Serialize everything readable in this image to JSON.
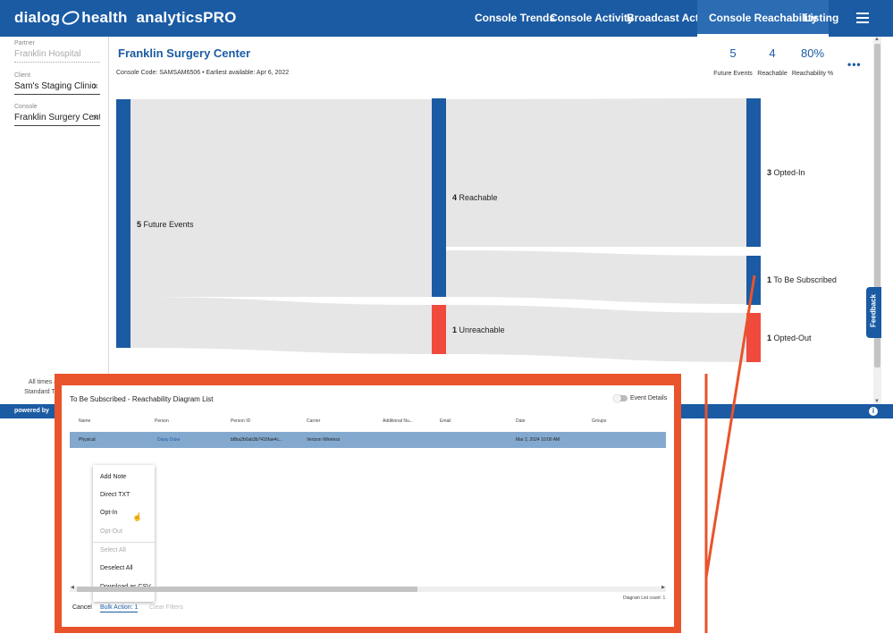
{
  "brand": {
    "name_left": "dialog",
    "name_right": "health",
    "product": "analyticsPRO"
  },
  "nav": {
    "items": [
      {
        "label": "Console Trends"
      },
      {
        "label": "Console Activity"
      },
      {
        "label": "Broadcast Activity"
      },
      {
        "label": "Console Reachability",
        "active": true
      },
      {
        "label": "Listing"
      }
    ]
  },
  "sidebar": {
    "partner": {
      "label": "Partner",
      "value": "Franklin Hospital"
    },
    "client": {
      "label": "Client",
      "value": "Sam's Staging Clinic"
    },
    "console": {
      "label": "Console",
      "value": "Franklin Surgery Center"
    },
    "tz_note_line1": "All times a",
    "tz_note_line2": "Standard Tim",
    "clear_symbol": "×"
  },
  "header": {
    "title": "Franklin Surgery Center",
    "console_code": "Console Code: SAMSAM6506 • Earliest available: Apr 6, 2022",
    "kpis": [
      {
        "value": "5",
        "label": "Future Events"
      },
      {
        "value": "4",
        "label": "Reachable"
      },
      {
        "value": "80%",
        "label": "Reachability %"
      }
    ],
    "more": "•••"
  },
  "sankey": {
    "nodes": [
      {
        "count": "5",
        "name": "Future Events"
      },
      {
        "count": "4",
        "name": "Reachable"
      },
      {
        "count": "1",
        "name": "Unreachable"
      },
      {
        "count": "3",
        "name": "Opted-In"
      },
      {
        "count": "1",
        "name": "To Be Subscribed"
      },
      {
        "count": "1",
        "name": "Opted-Out"
      }
    ],
    "colors": {
      "primary": "#1b5ba3",
      "alert": "#f04a3f",
      "link": "#e6e6e6"
    }
  },
  "feedback": "Feedback",
  "footer": {
    "powered_by": "powered by",
    "info": "i"
  },
  "popup": {
    "title": "To Be Subscribed - Reachability Diagram List",
    "toggle_label": "Event Details",
    "columns": [
      "Name",
      "Person",
      "Person ID",
      "Carrier",
      "Additional Nu...",
      "Email",
      "Date",
      "Groups"
    ],
    "row": {
      "name": "Physical",
      "person": "Daisy Duke",
      "person_id": "b8ba2b0ab3b7416fae4c...",
      "carrier": "Verizon Wireless",
      "additional": "",
      "email": "",
      "date": "Mar 2, 2024 10:00 AM",
      "groups": ""
    },
    "menu": [
      "Add Note",
      "Direct TXT",
      "Opt-In",
      "Opt-Out",
      "Select All",
      "Deselect All",
      "Download as CSV"
    ],
    "list_count": "Diagram List count: 1",
    "actions": {
      "cancel": "Cancel",
      "bulk": "Bulk Action: 1",
      "clear": "Clear Filters"
    }
  },
  "annotation_color": "#e9532b"
}
